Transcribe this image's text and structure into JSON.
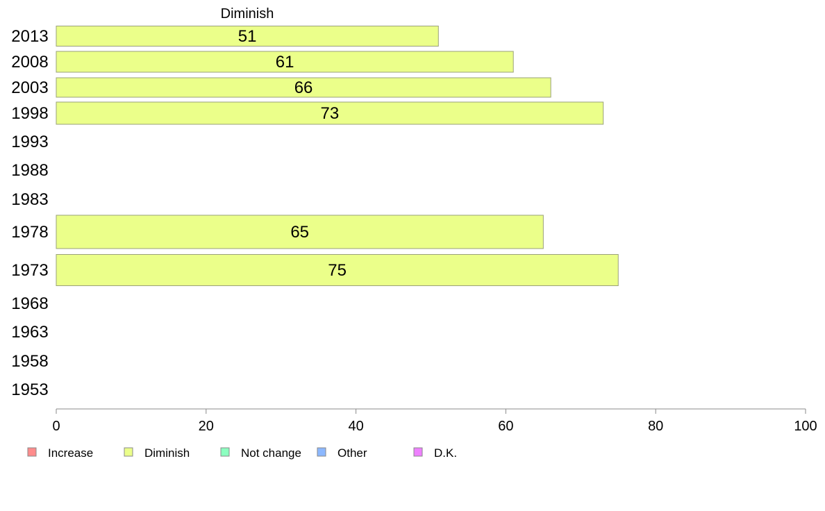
{
  "chart_data": {
    "type": "bar",
    "orientation": "horizontal",
    "series_title": "Diminish",
    "categories": [
      "2013",
      "2008",
      "2003",
      "1998",
      "1993",
      "1988",
      "1983",
      "1978",
      "1973",
      "1968",
      "1963",
      "1958",
      "1953"
    ],
    "series": [
      {
        "name": "Diminish",
        "color": "#ebff8a",
        "values": [
          51,
          61,
          66,
          73,
          null,
          null,
          null,
          65,
          75,
          null,
          null,
          null,
          null
        ]
      }
    ],
    "xlim": [
      0,
      100
    ],
    "xticks": [
      0,
      20,
      40,
      60,
      80,
      100
    ],
    "grid": false,
    "legend_position": "bottom-left",
    "legend": [
      {
        "label": "Increase",
        "color": "#ff8c8c"
      },
      {
        "label": "Diminish",
        "color": "#ebff8a"
      },
      {
        "label": "Not change",
        "color": "#8cffc0"
      },
      {
        "label": "Other",
        "color": "#8cb8ff"
      },
      {
        "label": "D.K.",
        "color": "#ee80ff"
      }
    ]
  }
}
